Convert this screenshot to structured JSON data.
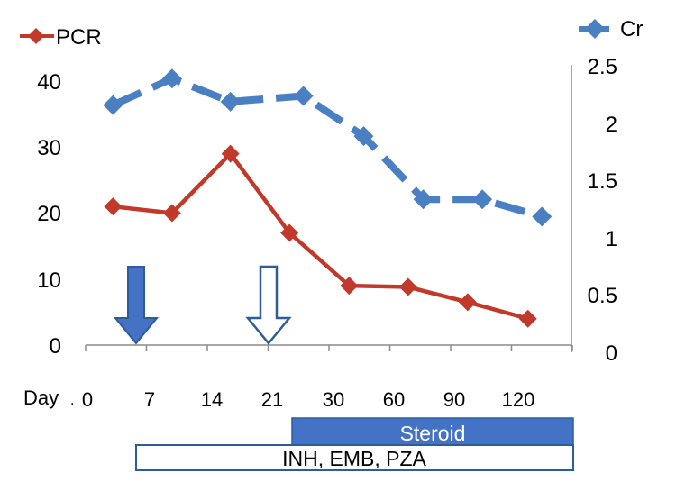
{
  "chart_data": {
    "type": "line",
    "title": "",
    "xlabel": "Day",
    "categories": [
      "0",
      "7",
      "14",
      "21",
      "30",
      "60",
      "90",
      "120"
    ],
    "series": [
      {
        "name": "PCR",
        "axis": "left",
        "color": "#c0392b",
        "line_style": "solid",
        "marker": "diamond",
        "points": [
          {
            "x": 0.45,
            "y": 21
          },
          {
            "x": 1.42,
            "y": 20
          },
          {
            "x": 2.38,
            "y": 29
          },
          {
            "x": 3.35,
            "y": 17
          },
          {
            "x": 4.33,
            "y": 9
          },
          {
            "x": 5.3,
            "y": 8.8
          },
          {
            "x": 6.28,
            "y": 6.5
          },
          {
            "x": 7.27,
            "y": 4
          }
        ]
      },
      {
        "name": "Cr",
        "axis": "right",
        "color": "#4a7fc1",
        "line_style": "dashed",
        "marker": "diamond",
        "points": [
          {
            "x": 0.45,
            "y": 2.15
          },
          {
            "x": 1.42,
            "y": 2.38
          },
          {
            "x": 2.38,
            "y": 2.18
          },
          {
            "x": 3.58,
            "y": 2.23
          },
          {
            "x": 4.57,
            "y": 1.88
          },
          {
            "x": 5.55,
            "y": 1.33
          },
          {
            "x": 6.52,
            "y": 1.33
          },
          {
            "x": 7.5,
            "y": 1.18
          }
        ]
      }
    ],
    "y_left": {
      "min": 0,
      "max": 40,
      "ticks": [
        "0",
        "10",
        "20",
        "30",
        "40"
      ]
    },
    "y_right": {
      "min": 0,
      "max": 2.5,
      "ticks": [
        "0",
        "0.5",
        "1",
        "1.5",
        "2",
        "2.5"
      ]
    },
    "grid": false,
    "legend": {
      "PCR": "top-left",
      "Cr": "top-right"
    },
    "annotations": {
      "arrows": [
        {
          "at_x": 0.88,
          "style": "filled",
          "color": "#4472c4"
        },
        {
          "at_x": 2.92,
          "style": "outline",
          "color": "#2e5c9a"
        }
      ],
      "treatment_bars": [
        {
          "label": "Steroid",
          "start_x": 3.35,
          "end_x": 8.0,
          "style": "filled",
          "color": "#4472c4"
        },
        {
          "label": "INH, EMB, PZA",
          "start_x": 0.8,
          "end_x": 8.0,
          "style": "outline",
          "color": "#2e5c9a"
        }
      ]
    }
  }
}
